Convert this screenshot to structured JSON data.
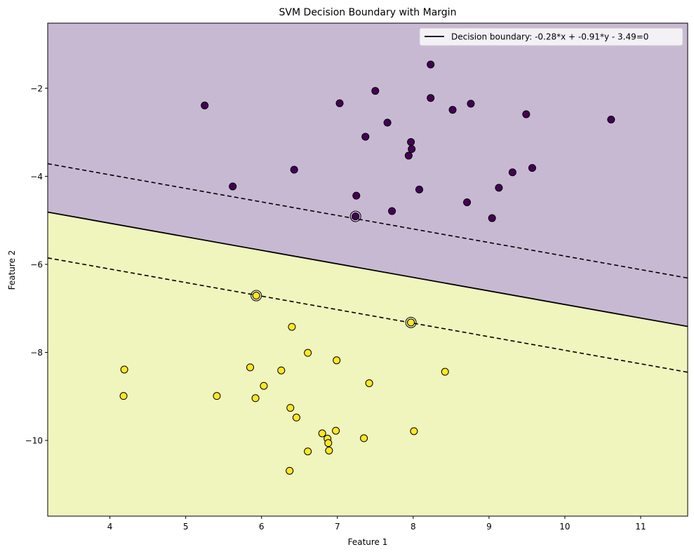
{
  "chart_data": {
    "type": "scatter",
    "title": "SVM Decision Boundary with Margin",
    "xlabel": "Feature 1",
    "ylabel": "Feature 2",
    "xlim": [
      3.18,
      11.62
    ],
    "ylim": [
      -11.72,
      -0.52
    ],
    "xticks": [
      4,
      5,
      6,
      7,
      8,
      9,
      10,
      11
    ],
    "yticks": [
      -10,
      -8,
      -6,
      -4,
      -2
    ],
    "ytick_labels": [
      "−10",
      "−8",
      "−6",
      "−4",
      "−2"
    ],
    "grid": false,
    "legend": {
      "location": "top-right",
      "entries": [
        "Decision boundary: -0.28*x + -0.91*y - 3.49=0"
      ]
    },
    "colors": {
      "region_upper": "#c8b9d3",
      "region_lower": "#f0f4bd",
      "class_0": "#440154",
      "class_1": "#fde725",
      "line": "#000000"
    },
    "boundary": {
      "slope": -0.30769,
      "intercept": -3.83516
    },
    "margins": [
      {
        "slope": -0.30769,
        "intercept": -2.735
      },
      {
        "slope": -0.30769,
        "intercept": -4.875
      }
    ],
    "series": [
      {
        "class": 0,
        "points": [
          [
            5.25,
            -2.39
          ],
          [
            5.62,
            -4.23
          ],
          [
            6.43,
            -3.85
          ],
          [
            7.03,
            -2.34
          ],
          [
            7.25,
            -4.44
          ],
          [
            7.24,
            -4.91
          ],
          [
            7.37,
            -3.1
          ],
          [
            7.5,
            -2.06
          ],
          [
            7.66,
            -2.78
          ],
          [
            7.72,
            -4.79
          ],
          [
            7.94,
            -3.53
          ],
          [
            7.97,
            -3.22
          ],
          [
            7.98,
            -3.38
          ],
          [
            8.08,
            -4.3
          ],
          [
            8.23,
            -1.46
          ],
          [
            8.23,
            -2.22
          ],
          [
            8.52,
            -2.49
          ],
          [
            8.71,
            -4.59
          ],
          [
            8.76,
            -2.35
          ],
          [
            9.04,
            -4.95
          ],
          [
            9.13,
            -4.26
          ],
          [
            9.31,
            -3.91
          ],
          [
            9.49,
            -2.59
          ],
          [
            9.57,
            -3.81
          ],
          [
            10.61,
            -2.71
          ]
        ]
      },
      {
        "class": 1,
        "points": [
          [
            4.19,
            -8.39
          ],
          [
            4.18,
            -8.99
          ],
          [
            5.41,
            -8.99
          ],
          [
            5.85,
            -8.34
          ],
          [
            5.92,
            -9.04
          ],
          [
            5.93,
            -6.71
          ],
          [
            6.03,
            -8.76
          ],
          [
            6.26,
            -8.41
          ],
          [
            6.38,
            -9.26
          ],
          [
            6.4,
            -7.42
          ],
          [
            6.37,
            -10.69
          ],
          [
            6.46,
            -9.48
          ],
          [
            6.61,
            -8.01
          ],
          [
            6.61,
            -10.25
          ],
          [
            6.8,
            -9.84
          ],
          [
            6.87,
            -9.96
          ],
          [
            6.88,
            -10.06
          ],
          [
            6.89,
            -10.23
          ],
          [
            6.98,
            -9.78
          ],
          [
            6.99,
            -8.18
          ],
          [
            7.35,
            -9.95
          ],
          [
            7.42,
            -8.7
          ],
          [
            7.97,
            -7.32
          ],
          [
            8.01,
            -9.79
          ],
          [
            8.42,
            -8.44
          ]
        ]
      }
    ],
    "support_vectors": [
      [
        7.24,
        -4.91
      ],
      [
        5.93,
        -6.71
      ],
      [
        7.97,
        -7.32
      ]
    ]
  }
}
